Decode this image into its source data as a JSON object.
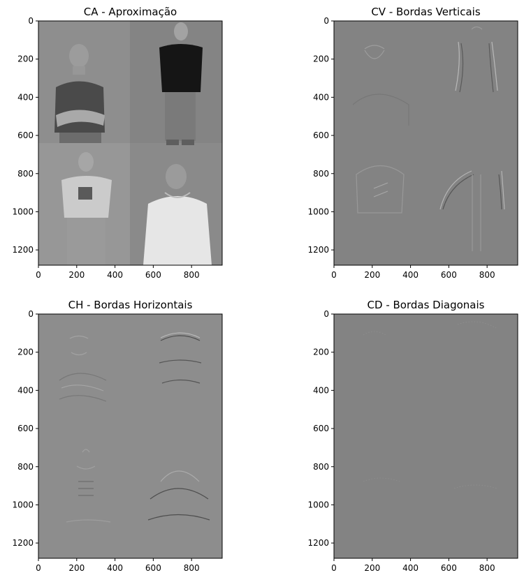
{
  "chart_data": [
    {
      "type": "image",
      "title": "CA - Aproximação",
      "xlim": [
        0,
        960
      ],
      "ylim": [
        1280,
        0
      ],
      "xticks": [
        0,
        200,
        400,
        600,
        800
      ],
      "yticks": [
        0,
        200,
        400,
        600,
        800,
        1000,
        1200
      ],
      "colormap": "gray",
      "content": "four-photo collage (approximation coefficients)"
    },
    {
      "type": "image",
      "title": "CV - Bordas Verticais",
      "xlim": [
        0,
        960
      ],
      "ylim": [
        1280,
        0
      ],
      "xticks": [
        0,
        200,
        400,
        600,
        800
      ],
      "yticks": [
        0,
        200,
        400,
        600,
        800,
        1000,
        1200
      ],
      "colormap": "gray",
      "content": "vertical edge detail coefficients"
    },
    {
      "type": "image",
      "title": "CH - Bordas Horizontais",
      "xlim": [
        0,
        960
      ],
      "ylim": [
        1280,
        0
      ],
      "xticks": [
        0,
        200,
        400,
        600,
        800
      ],
      "yticks": [
        0,
        200,
        400,
        600,
        800,
        1000,
        1200
      ],
      "colormap": "gray",
      "content": "horizontal edge detail coefficients"
    },
    {
      "type": "image",
      "title": "CD - Bordas Diagonais",
      "xlim": [
        0,
        960
      ],
      "ylim": [
        1280,
        0
      ],
      "xticks": [
        0,
        200,
        400,
        600,
        800
      ],
      "yticks": [
        0,
        200,
        400,
        600,
        800,
        1000,
        1200
      ],
      "colormap": "gray",
      "content": "diagonal edge detail coefficients"
    }
  ],
  "colors": {
    "ca_bg_top_left": "#8e8e8e",
    "ca_bg_top_right": "#848484",
    "ca_bg_bottom_left": "#969696",
    "ca_bg_bottom_right": "#8a8a8a",
    "detail_bg": "#838383",
    "ch_bg": "#8d8d8d",
    "edge_light": "#b8b8b8",
    "edge_dark": "#4a4a4a"
  }
}
